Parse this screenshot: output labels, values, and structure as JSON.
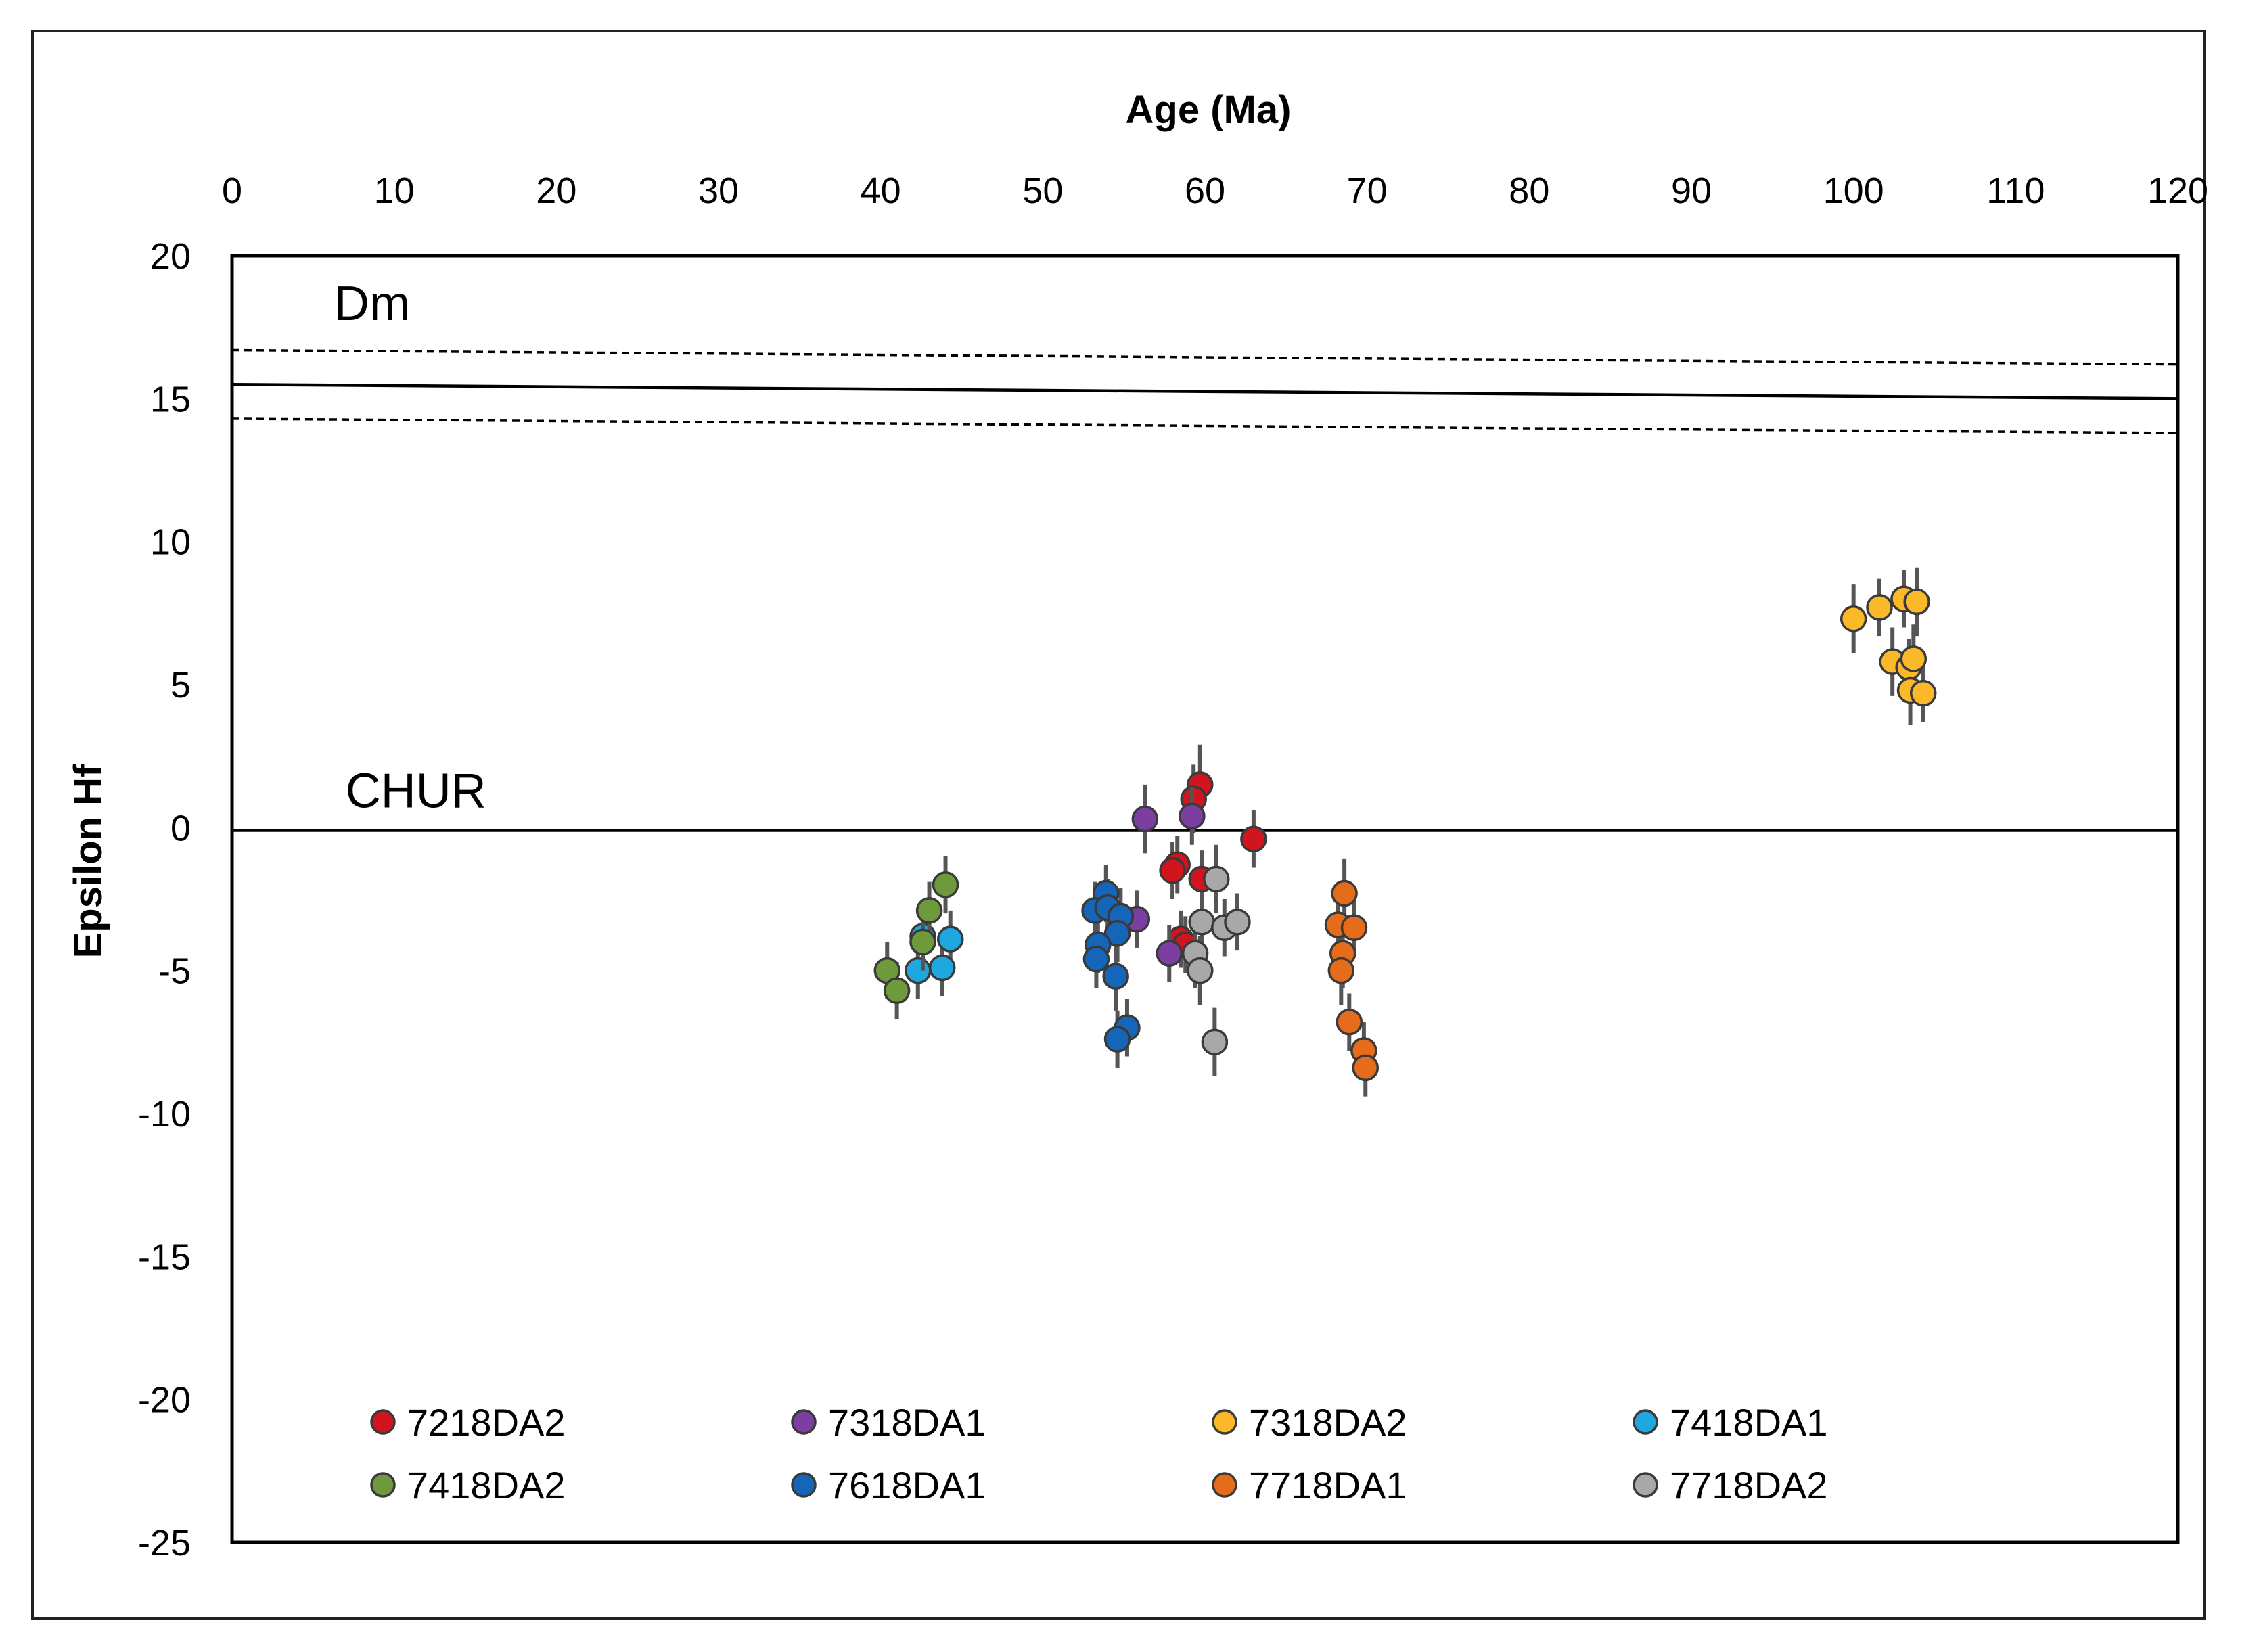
{
  "chart_data": {
    "type": "scatter",
    "title": "",
    "xlabel": "Age (Ma)",
    "ylabel": "Epsilon Hf",
    "xlim": [
      0,
      120
    ],
    "ylim": [
      -25,
      20
    ],
    "xticks": [
      0,
      10,
      20,
      30,
      40,
      50,
      60,
      70,
      80,
      90,
      100,
      110,
      120
    ],
    "yticks": [
      20,
      15,
      10,
      5,
      0,
      -5,
      -10,
      -15,
      -20,
      -25
    ],
    "x_axis_position": "top",
    "grid": false,
    "legend_position": "bottom",
    "reference_lines": [
      {
        "name": "Dm",
        "label": "Dm",
        "style": "solid",
        "points": [
          [
            0,
            15.5
          ],
          [
            120,
            15.0
          ]
        ]
      },
      {
        "name": "Dm upper",
        "style": "dashed",
        "points": [
          [
            0,
            16.7
          ],
          [
            120,
            16.2
          ]
        ]
      },
      {
        "name": "Dm lower",
        "style": "dashed",
        "points": [
          [
            0,
            14.3
          ],
          [
            120,
            13.8
          ]
        ]
      },
      {
        "name": "CHUR",
        "label": "CHUR",
        "style": "solid",
        "points": [
          [
            0,
            -0.1
          ],
          [
            120,
            -0.1
          ]
        ]
      }
    ],
    "series": [
      {
        "name": "7218DA2",
        "color": "#d2141e",
        "points": [
          {
            "x": 59.7,
            "y": 1.5,
            "err": 1.4
          },
          {
            "x": 59.3,
            "y": 1.0,
            "err": 1.2
          },
          {
            "x": 63.0,
            "y": -0.4,
            "err": 1.0
          },
          {
            "x": 58.3,
            "y": -1.3,
            "err": 1.0
          },
          {
            "x": 58.0,
            "y": -1.5,
            "err": 1.0
          },
          {
            "x": 59.8,
            "y": -1.8,
            "err": 1.0
          },
          {
            "x": 58.5,
            "y": -3.9,
            "err": 1.0
          },
          {
            "x": 58.8,
            "y": -4.1,
            "err": 1.0
          }
        ]
      },
      {
        "name": "7318DA1",
        "color": "#7a3fa0",
        "points": [
          {
            "x": 56.3,
            "y": 0.3,
            "err": 1.2
          },
          {
            "x": 59.2,
            "y": 0.4,
            "err": 1.0
          },
          {
            "x": 55.8,
            "y": -3.2,
            "err": 1.0
          },
          {
            "x": 57.8,
            "y": -4.4,
            "err": 1.0
          }
        ]
      },
      {
        "name": "7318DA2",
        "color": "#fbb829",
        "points": [
          {
            "x": 100.0,
            "y": 7.3,
            "err": 1.2
          },
          {
            "x": 101.6,
            "y": 7.7,
            "err": 1.0
          },
          {
            "x": 103.1,
            "y": 8.0,
            "err": 1.0
          },
          {
            "x": 103.9,
            "y": 7.9,
            "err": 1.2
          },
          {
            "x": 102.4,
            "y": 5.8,
            "err": 1.2
          },
          {
            "x": 103.4,
            "y": 5.6,
            "err": 1.0
          },
          {
            "x": 103.7,
            "y": 5.9,
            "err": 1.2
          },
          {
            "x": 103.5,
            "y": 4.8,
            "err": 1.2
          },
          {
            "x": 104.3,
            "y": 4.7,
            "err": 1.0
          }
        ]
      },
      {
        "name": "7418DA1",
        "color": "#1fa8e0",
        "points": [
          {
            "x": 42.6,
            "y": -3.8,
            "err": 1.0
          },
          {
            "x": 44.3,
            "y": -3.9,
            "err": 1.0
          },
          {
            "x": 42.3,
            "y": -5.0,
            "err": 1.0
          },
          {
            "x": 43.8,
            "y": -4.9,
            "err": 1.0
          }
        ]
      },
      {
        "name": "7418DA2",
        "color": "#6f9a3c",
        "points": [
          {
            "x": 44.0,
            "y": -2.0,
            "err": 1.0
          },
          {
            "x": 43.0,
            "y": -2.9,
            "err": 1.0
          },
          {
            "x": 42.6,
            "y": -4.0,
            "err": 1.0
          },
          {
            "x": 40.4,
            "y": -5.0,
            "err": 1.0
          },
          {
            "x": 41.0,
            "y": -5.7,
            "err": 1.0
          }
        ]
      },
      {
        "name": "7618DA1",
        "color": "#1565b8",
        "points": [
          {
            "x": 53.9,
            "y": -2.3,
            "err": 1.0
          },
          {
            "x": 53.2,
            "y": -2.9,
            "err": 1.0
          },
          {
            "x": 54.0,
            "y": -2.8,
            "err": 1.0
          },
          {
            "x": 54.8,
            "y": -3.1,
            "err": 1.0
          },
          {
            "x": 54.6,
            "y": -3.7,
            "err": 1.0
          },
          {
            "x": 53.4,
            "y": -4.1,
            "err": 1.0
          },
          {
            "x": 53.3,
            "y": -4.6,
            "err": 1.0
          },
          {
            "x": 54.5,
            "y": -5.2,
            "err": 1.2
          },
          {
            "x": 55.2,
            "y": -7.0,
            "err": 1.0
          },
          {
            "x": 54.6,
            "y": -7.4,
            "err": 1.0
          }
        ]
      },
      {
        "name": "7718DA1",
        "color": "#e56c1a",
        "points": [
          {
            "x": 68.6,
            "y": -2.3,
            "err": 1.2
          },
          {
            "x": 68.2,
            "y": -3.4,
            "err": 1.0
          },
          {
            "x": 69.2,
            "y": -3.5,
            "err": 1.0
          },
          {
            "x": 68.5,
            "y": -4.4,
            "err": 1.2
          },
          {
            "x": 68.4,
            "y": -5.0,
            "err": 1.2
          },
          {
            "x": 68.9,
            "y": -6.8,
            "err": 1.0
          },
          {
            "x": 69.8,
            "y": -7.8,
            "err": 1.0
          },
          {
            "x": 69.9,
            "y": -8.4,
            "err": 1.0
          }
        ]
      },
      {
        "name": "7718DA2",
        "color": "#a8a8a8",
        "points": [
          {
            "x": 60.7,
            "y": -1.8,
            "err": 1.2
          },
          {
            "x": 59.8,
            "y": -3.3,
            "err": 1.0
          },
          {
            "x": 61.2,
            "y": -3.5,
            "err": 1.0
          },
          {
            "x": 62.0,
            "y": -3.3,
            "err": 1.0
          },
          {
            "x": 59.4,
            "y": -4.4,
            "err": 1.2
          },
          {
            "x": 59.7,
            "y": -5.0,
            "err": 1.2
          },
          {
            "x": 60.6,
            "y": -7.5,
            "err": 1.2
          }
        ]
      }
    ]
  }
}
